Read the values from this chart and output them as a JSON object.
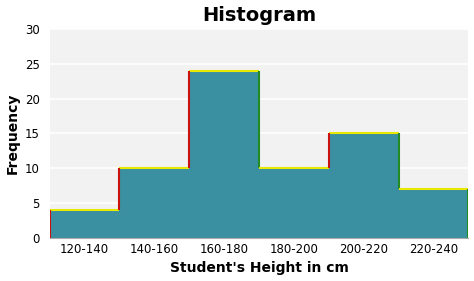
{
  "title": "Histogram",
  "xlabel": "Student's Height in cm",
  "ylabel": "Frequency",
  "categories": [
    "120-140",
    "140-160",
    "160-180",
    "180-200",
    "200-220",
    "220-240"
  ],
  "bin_edges": [
    120,
    140,
    160,
    180,
    200,
    220,
    240
  ],
  "frequencies": [
    4,
    10,
    24,
    10,
    15,
    7
  ],
  "bar_color": "#3A8FA0",
  "edge_yellow": "#E8E800",
  "edge_red": "#CC1111",
  "edge_green": "#228B22",
  "ylim": [
    0,
    30
  ],
  "yticks": [
    0,
    5,
    10,
    15,
    20,
    25,
    30
  ],
  "title_fontsize": 14,
  "label_fontsize": 10,
  "tick_fontsize": 8.5,
  "plot_bg": "#F2F2F2",
  "fig_bg": "#FFFFFF",
  "grid_color": "#FFFFFF",
  "lw_edge": 1.5
}
